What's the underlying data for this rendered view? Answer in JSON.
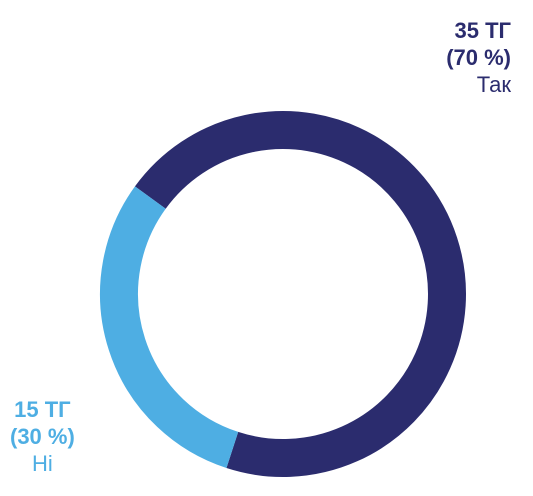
{
  "chart_data": {
    "type": "pie",
    "donut": true,
    "title": "",
    "slices": [
      {
        "label": "Так",
        "value": 35,
        "value_text": "35 ТГ",
        "percent": 70,
        "percent_text": "(70 %)",
        "color": "#2b2c6e"
      },
      {
        "label": "Ні",
        "value": 15,
        "value_text": "15 ТГ",
        "percent": 30,
        "percent_text": "(30 %)",
        "color": "#4eaee3"
      }
    ]
  }
}
